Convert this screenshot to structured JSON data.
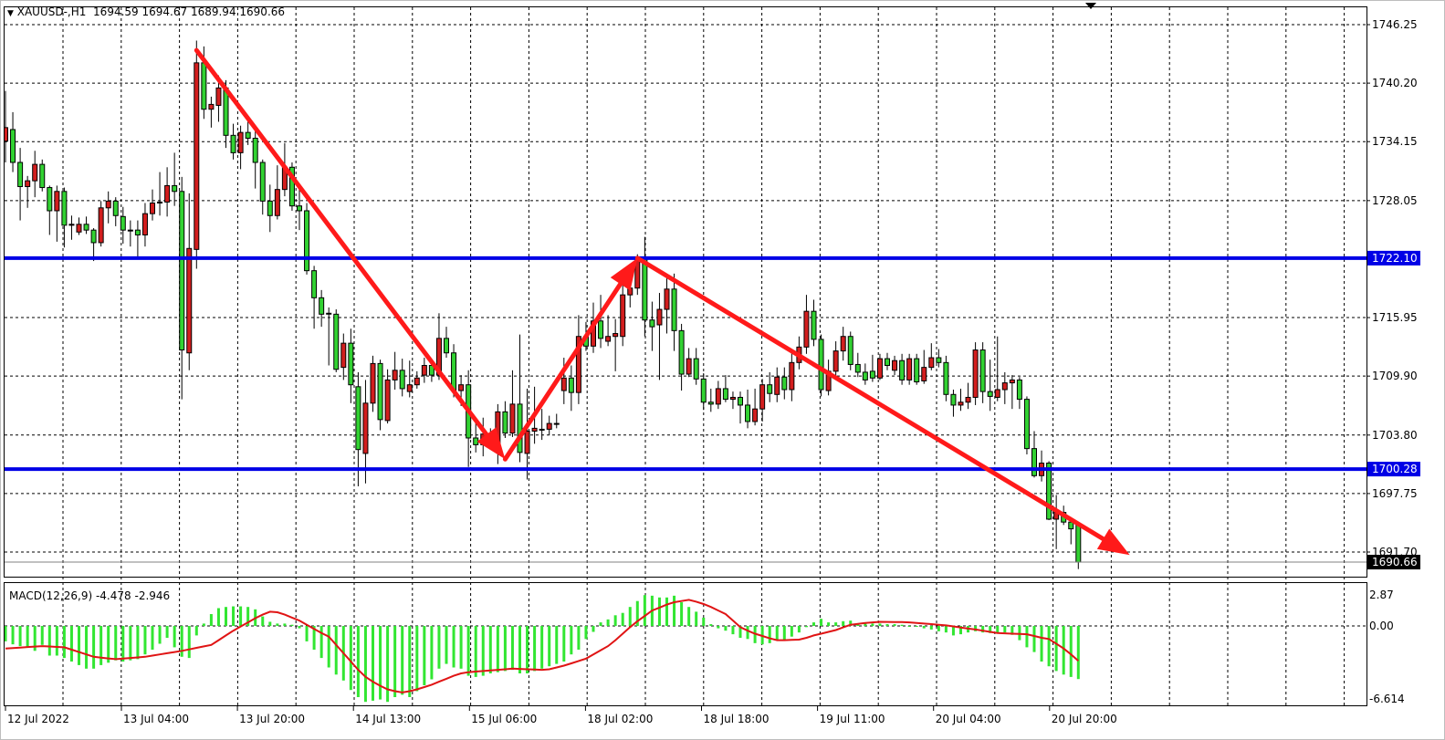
{
  "header": {
    "symbol": "XAUUSD-,H1",
    "open": "1694.59",
    "high": "1694.67",
    "low": "1689.94",
    "close": "1690.66"
  },
  "macd_label": {
    "name": "MACD(12,26,9)",
    "main": "-4.478",
    "signal": "-2.946"
  },
  "colors": {
    "bull_candle": "#d21e1e",
    "bear_candle": "#32d232",
    "level_line": "#0000e6",
    "arrow": "#ff1a1a",
    "histogram": "#32e632",
    "signal_line": "#e01414",
    "grid": "#000000"
  },
  "chart_data": [
    {
      "type": "candlestick",
      "title": "XAUUSD-,H1",
      "ylim": [
        1689.2,
        1748.2
      ],
      "y_ticks": [
        "1746.25",
        "1740.20",
        "1734.15",
        "1728.05",
        "1715.95",
        "1709.90",
        "1703.80",
        "1697.75",
        "1691.70"
      ],
      "x_tick_labels": [
        "12 Jul 2022",
        "13 Jul 04:00",
        "13 Jul 20:00",
        "14 Jul 13:00",
        "15 Jul 06:00",
        "18 Jul 02:00",
        "18 Jul 18:00",
        "19 Jul 11:00",
        "20 Jul 04:00",
        "20 Jul 20:00"
      ],
      "grid": true,
      "candles_ohlc": [
        [
          1734.2,
          1739.4,
          1732,
          1735.6
        ],
        [
          1735.4,
          1737.2,
          1731,
          1732.0
        ],
        [
          1732,
          1733.5,
          1726,
          1729.5
        ],
        [
          1729.5,
          1730.6,
          1727.3,
          1730.1
        ],
        [
          1730.1,
          1733.2,
          1728.4,
          1731.8
        ],
        [
          1731.8,
          1732.3,
          1729,
          1729.4
        ],
        [
          1729.4,
          1729.6,
          1724.5,
          1727
        ],
        [
          1727,
          1729.6,
          1723.8,
          1729
        ],
        [
          1729,
          1729.4,
          1723.2,
          1725.5
        ],
        [
          1725.5,
          1726.5,
          1724,
          1725.6
        ],
        [
          1724.8,
          1726.3,
          1724.5,
          1725.6
        ],
        [
          1725.6,
          1726.4,
          1724.6,
          1725
        ],
        [
          1725,
          1725.2,
          1721.8,
          1723.7
        ],
        [
          1723.7,
          1728,
          1723.3,
          1727.3
        ],
        [
          1727.3,
          1729,
          1725.7,
          1728
        ],
        [
          1728,
          1728.4,
          1725.4,
          1726.5
        ],
        [
          1726.4,
          1727.4,
          1723.6,
          1725
        ],
        [
          1725,
          1726,
          1723.3,
          1725
        ],
        [
          1725,
          1726,
          1722,
          1724.5
        ],
        [
          1724.5,
          1727.8,
          1723.3,
          1726.7
        ],
        [
          1726.7,
          1729.2,
          1726,
          1727.8
        ],
        [
          1727.8,
          1731,
          1726.5,
          1727.9
        ],
        [
          1727.9,
          1731.5,
          1726.4,
          1729.6
        ],
        [
          1729.6,
          1733,
          1727.5,
          1729
        ],
        [
          1729,
          1730.5,
          1707.5,
          1712.6
        ],
        [
          1712.3,
          1728.8,
          1710.5,
          1723.1
        ],
        [
          1723,
          1744.6,
          1721,
          1742.3
        ],
        [
          1742.3,
          1744,
          1736.5,
          1737.5
        ],
        [
          1737.5,
          1738.8,
          1735.6,
          1738
        ],
        [
          1737.9,
          1741,
          1736.2,
          1739.7
        ],
        [
          1739.7,
          1740.5,
          1733.5,
          1734.8
        ],
        [
          1734.8,
          1736,
          1732.3,
          1733
        ],
        [
          1733,
          1735.8,
          1731.3,
          1735.1
        ],
        [
          1735.1,
          1736.8,
          1733.8,
          1734.5
        ],
        [
          1734.5,
          1735.3,
          1729.3,
          1732
        ],
        [
          1732,
          1732.3,
          1726.6,
          1728
        ],
        [
          1728,
          1729.7,
          1724.8,
          1726.5
        ],
        [
          1726.5,
          1731.7,
          1726.1,
          1729.2
        ],
        [
          1729.2,
          1734,
          1728.5,
          1731.5
        ],
        [
          1731.5,
          1732,
          1727,
          1727.5
        ],
        [
          1727.5,
          1729.7,
          1725,
          1727
        ],
        [
          1727,
          1727.8,
          1720.4,
          1720.8
        ],
        [
          1720.8,
          1721.3,
          1714.8,
          1718
        ],
        [
          1718,
          1718.8,
          1715,
          1716.3
        ],
        [
          1716.4,
          1717,
          1711,
          1716.4
        ],
        [
          1716.3,
          1716.8,
          1710.3,
          1710.6
        ],
        [
          1710.8,
          1714.3,
          1709.5,
          1713.3
        ],
        [
          1713.3,
          1714.8,
          1707.1,
          1709
        ],
        [
          1708.8,
          1710.3,
          1698.5,
          1702.3
        ],
        [
          1701.9,
          1709.5,
          1698.8,
          1707.1
        ],
        [
          1707.1,
          1712,
          1706.2,
          1711.2
        ],
        [
          1711.2,
          1711.6,
          1704.3,
          1705.4
        ],
        [
          1705.3,
          1710.6,
          1705,
          1709.5
        ],
        [
          1709.5,
          1712.4,
          1708.5,
          1710.5
        ],
        [
          1710.5,
          1711.7,
          1707.8,
          1708.6
        ],
        [
          1708.3,
          1711.5,
          1707.7,
          1709
        ],
        [
          1709,
          1710.4,
          1708.6,
          1709.7
        ],
        [
          1710,
          1711.8,
          1709.2,
          1711
        ],
        [
          1711,
          1711.6,
          1709.3,
          1710
        ],
        [
          1710,
          1716.4,
          1709.5,
          1713.8
        ],
        [
          1713.8,
          1715,
          1711.8,
          1712.3
        ],
        [
          1712.3,
          1713.2,
          1707.7,
          1708.4
        ],
        [
          1708.4,
          1710,
          1706.8,
          1709
        ],
        [
          1709,
          1710.5,
          1700.5,
          1703.5
        ],
        [
          1703.5,
          1705,
          1702,
          1702.8
        ],
        [
          1702.8,
          1705.6,
          1701.6,
          1703.9
        ],
        [
          1703.9,
          1704.5,
          1702.5,
          1703.5
        ],
        [
          1702.6,
          1707,
          1700.8,
          1706.2
        ],
        [
          1706.2,
          1707.3,
          1703.5,
          1704
        ],
        [
          1704,
          1710.5,
          1703.6,
          1707
        ],
        [
          1707,
          1714.2,
          1701,
          1702
        ],
        [
          1701.9,
          1708.6,
          1699.2,
          1704.2
        ],
        [
          1704.2,
          1708.8,
          1702.9,
          1704.5
        ],
        [
          1704.4,
          1706.5,
          1703.3,
          1704.4
        ],
        [
          1704.4,
          1705.8,
          1703.8,
          1705
        ],
        [
          1705,
          1706,
          1704.5,
          1705
        ],
        [
          1708.4,
          1711.8,
          1707,
          1709.7
        ],
        [
          1709.7,
          1711,
          1706.3,
          1708.2
        ],
        [
          1708.2,
          1716.2,
          1707,
          1714.0
        ],
        [
          1714,
          1715.5,
          1712.5,
          1713
        ],
        [
          1713,
          1717.5,
          1712.3,
          1715.6
        ],
        [
          1715.6,
          1718.3,
          1712.8,
          1713.8
        ],
        [
          1713.5,
          1716.2,
          1713,
          1714
        ],
        [
          1714,
          1715.8,
          1710.4,
          1714.3
        ],
        [
          1714,
          1719.4,
          1713,
          1718.3
        ],
        [
          1718.3,
          1719.8,
          1717,
          1719
        ],
        [
          1719,
          1722.5,
          1718.3,
          1722
        ],
        [
          1722,
          1724.3,
          1714,
          1715.7
        ],
        [
          1715.7,
          1717.6,
          1712.5,
          1715
        ],
        [
          1715.2,
          1718.5,
          1709.5,
          1716.8
        ],
        [
          1716.8,
          1720,
          1714.3,
          1718.9
        ],
        [
          1718.9,
          1720.5,
          1712.5,
          1714.6
        ],
        [
          1714.6,
          1715.3,
          1708.4,
          1710.1
        ],
        [
          1710.1,
          1712.8,
          1709.8,
          1711.7
        ],
        [
          1711.7,
          1712.8,
          1709,
          1709.6
        ],
        [
          1709.6,
          1710.2,
          1706.4,
          1707.2
        ],
        [
          1707.2,
          1708.6,
          1706.2,
          1707
        ],
        [
          1707,
          1709.4,
          1706.5,
          1708.6
        ],
        [
          1708.6,
          1710,
          1707.2,
          1707.5
        ],
        [
          1707.5,
          1708.3,
          1706.5,
          1707.7
        ],
        [
          1707.7,
          1708.3,
          1705,
          1706.9
        ],
        [
          1706.9,
          1708.5,
          1704.5,
          1705.2
        ],
        [
          1705.2,
          1708.6,
          1704.8,
          1706.5
        ],
        [
          1706.5,
          1709.6,
          1705.2,
          1709
        ],
        [
          1709,
          1710.3,
          1707.2,
          1708.1
        ],
        [
          1708,
          1710.8,
          1707.2,
          1709.8
        ],
        [
          1709.8,
          1710.8,
          1707.5,
          1708.5
        ],
        [
          1708.5,
          1712.6,
          1707.3,
          1711.3
        ],
        [
          1711.3,
          1714,
          1710.6,
          1712.9
        ],
        [
          1712.9,
          1718.3,
          1712.2,
          1716.6
        ],
        [
          1716.6,
          1717.8,
          1713,
          1713.7
        ],
        [
          1713.7,
          1714.2,
          1707.8,
          1708.5
        ],
        [
          1708.4,
          1711.6,
          1707.9,
          1710.4
        ],
        [
          1710.4,
          1713.5,
          1709.8,
          1712.5
        ],
        [
          1712.5,
          1715,
          1711.5,
          1714
        ],
        [
          1714,
          1714.5,
          1710.5,
          1711.1
        ],
        [
          1711.1,
          1712.3,
          1709.8,
          1710.3
        ],
        [
          1710.3,
          1711.2,
          1709,
          1709.5
        ],
        [
          1710.4,
          1712.1,
          1709.3,
          1709.7
        ],
        [
          1709.7,
          1712.2,
          1709.5,
          1711.7
        ],
        [
          1711.7,
          1712.3,
          1710.5,
          1711
        ],
        [
          1710.5,
          1712,
          1710,
          1711.5
        ],
        [
          1711.5,
          1712.2,
          1709,
          1709.5
        ],
        [
          1709.5,
          1712.2,
          1709,
          1711.7
        ],
        [
          1711.7,
          1712.2,
          1709,
          1709.3
        ],
        [
          1709.4,
          1712.6,
          1709.1,
          1710.8
        ],
        [
          1710.8,
          1713.3,
          1710.5,
          1711.8
        ],
        [
          1711.8,
          1712.7,
          1710.8,
          1711.3
        ],
        [
          1711.3,
          1712,
          1707.3,
          1708
        ],
        [
          1708,
          1708.5,
          1705.7,
          1706.9
        ],
        [
          1706.9,
          1708.6,
          1706.3,
          1707.2
        ],
        [
          1707.2,
          1709.2,
          1706.5,
          1707.7
        ],
        [
          1707.7,
          1713.4,
          1706.9,
          1712.6
        ],
        [
          1712.6,
          1713.4,
          1707.1,
          1708.3
        ],
        [
          1708.3,
          1711.6,
          1706.3,
          1707.8
        ],
        [
          1707.7,
          1714,
          1707.3,
          1708.5
        ],
        [
          1708.5,
          1710.3,
          1707,
          1709.2
        ],
        [
          1709.2,
          1710,
          1706.5,
          1709.5
        ],
        [
          1709.5,
          1709.8,
          1706.5,
          1707.5
        ],
        [
          1707.5,
          1707.8,
          1701.8,
          1702.4
        ],
        [
          1702.4,
          1704.2,
          1699.4,
          1699.6
        ],
        [
          1699.6,
          1702.2,
          1699,
          1700.9
        ],
        [
          1700.9,
          1701.1,
          1695,
          1695.1
        ],
        [
          1695.1,
          1697.6,
          1692,
          1695.8
        ],
        [
          1695.8,
          1696.5,
          1694.5,
          1694.8
        ],
        [
          1694.8,
          1695.3,
          1692.5,
          1694.1
        ],
        [
          1694.59,
          1694.67,
          1689.94,
          1690.66
        ]
      ],
      "horizontal_levels": [
        {
          "price": 1722.1,
          "label": "1722.10"
        },
        {
          "price": 1700.28,
          "label": "1700.28"
        }
      ],
      "bid_line": {
        "price": 1690.66,
        "label": "1690.66"
      },
      "arrows": [
        {
          "from": {
            "bar": 26,
            "price": 1743.6
          },
          "to": {
            "bar": 68,
            "price": 1701.3
          }
        },
        {
          "from": {
            "bar": 68,
            "price": 1701.3
          },
          "to": {
            "bar": 86,
            "price": 1722.1
          }
        },
        {
          "from": {
            "bar": 86,
            "price": 1722.1
          },
          "to": {
            "bar": 153,
            "price": 1691.4
          }
        }
      ]
    },
    {
      "type": "bar+line",
      "title": "MACD(12,26,9)",
      "ylim": [
        -6.614,
        2.87
      ],
      "y_ticks": [
        "2.87",
        "0.00",
        "-6.614"
      ],
      "histogram": [
        -1.3,
        -1.55,
        -1.7,
        -1.8,
        -2.1,
        -1.6,
        -2.5,
        -2.5,
        -2.7,
        -3.0,
        -3.3,
        -3.6,
        -3.6,
        -3.3,
        -3.1,
        -2.9,
        -3.0,
        -2.9,
        -2.8,
        -2.4,
        -2.0,
        -1.5,
        -1.0,
        -1.8,
        -2.6,
        -2.7,
        -0.8,
        0.2,
        1.0,
        1.5,
        1.6,
        1.65,
        1.65,
        1.6,
        1.4,
        0.8,
        0.35,
        0.2,
        0.2,
        0.1,
        -0.2,
        -1.3,
        -2.0,
        -2.7,
        -3.5,
        -4.1,
        -4.6,
        -5.4,
        -6.0,
        -6.4,
        -6.3,
        -6.2,
        -6.4,
        -6.0,
        -5.8,
        -6.0,
        -5.5,
        -5.0,
        -4.5,
        -3.6,
        -3.2,
        -3.5,
        -3.6,
        -4.2,
        -4.3,
        -4.2,
        -4.0,
        -3.9,
        -3.8,
        -3.7,
        -4.0,
        -4.0,
        -3.8,
        -3.6,
        -3.4,
        -3.2,
        -3.0,
        -2.4,
        -2.0,
        -1.1,
        -0.5,
        0.3,
        0.55,
        0.9,
        1.1,
        1.6,
        2.1,
        2.6,
        2.55,
        2.4,
        2.4,
        2.55,
        2.0,
        1.6,
        1.2,
        0.7,
        0.15,
        -0.2,
        -0.4,
        -0.7,
        -1.0,
        -1.1,
        -1.45,
        -1.55,
        -1.45,
        -1.2,
        -1.2,
        -0.9,
        -0.55,
        -0.1,
        0.3,
        0.6,
        0.3,
        0.3,
        0.4,
        0.45,
        0.2,
        0.2,
        0.2,
        0.2,
        0.15,
        0.15,
        0.1,
        0,
        -0.05,
        -0.2,
        -0.3,
        -0.45,
        -0.55,
        -0.8,
        -0.7,
        -0.55,
        -0.45,
        -0.55,
        -0.6,
        -0.55,
        -0.55,
        -0.75,
        -1.2,
        -1.8,
        -2.2,
        -3.0,
        -3.4,
        -3.8,
        -4.1,
        -4.3,
        -4.478
      ],
      "signal": [
        -1.9,
        -1.86,
        -1.82,
        -1.78,
        -1.74,
        -1.7,
        -1.73,
        -1.77,
        -1.8,
        -2.0,
        -2.2,
        -2.4,
        -2.6,
        -2.67,
        -2.74,
        -2.8,
        -2.75,
        -2.7,
        -2.65,
        -2.6,
        -2.5,
        -2.4,
        -2.3,
        -2.2,
        -2.1,
        -1.98,
        -1.85,
        -1.72,
        -1.6,
        -1.2,
        -0.8,
        -0.4,
        -0.05,
        0.3,
        0.65,
        0.95,
        1.2,
        1.15,
        0.95,
        0.7,
        0.45,
        0.1,
        -0.25,
        -0.6,
        -0.9,
        -1.6,
        -2.3,
        -3.0,
        -3.7,
        -4.3,
        -4.7,
        -5.05,
        -5.35,
        -5.5,
        -5.6,
        -5.5,
        -5.35,
        -5.15,
        -4.95,
        -4.7,
        -4.45,
        -4.2,
        -4.0,
        -3.9,
        -3.85,
        -3.8,
        -3.75,
        -3.7,
        -3.65,
        -3.6,
        -3.62,
        -3.65,
        -3.68,
        -3.7,
        -3.65,
        -3.5,
        -3.35,
        -3.15,
        -2.95,
        -2.75,
        -2.4,
        -2.05,
        -1.7,
        -1.2,
        -0.65,
        -0.1,
        0.4,
        0.85,
        1.3,
        1.55,
        1.8,
        2.0,
        2.1,
        2.2,
        2.05,
        1.85,
        1.6,
        1.3,
        1.0,
        0.45,
        -0.1,
        -0.4,
        -0.65,
        -0.85,
        -1.05,
        -1.2,
        -1.2,
        -1.18,
        -1.15,
        -1.0,
        -0.8,
        -0.65,
        -0.5,
        -0.35,
        -0.12,
        0.1,
        0.18,
        0.25,
        0.3,
        0.35,
        0.34,
        0.33,
        0.32,
        0.3,
        0.25,
        0.2,
        0.15,
        0.1,
        0.05,
        -0.04,
        -0.13,
        -0.22,
        -0.3,
        -0.4,
        -0.5,
        -0.6,
        -0.62,
        -0.65,
        -0.68,
        -0.7,
        -0.85,
        -1.0,
        -1.1,
        -1.5,
        -1.9,
        -2.4,
        -2.946
      ]
    }
  ]
}
